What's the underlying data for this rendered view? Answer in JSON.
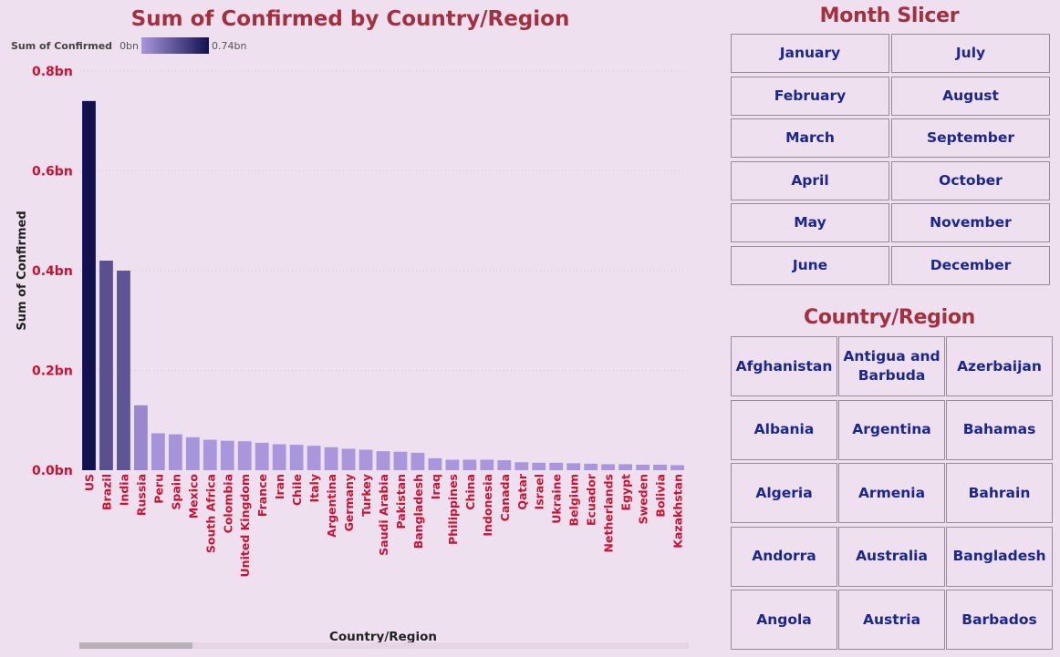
{
  "chart_data": {
    "type": "bar",
    "title": "Sum of Confirmed by Country/Region",
    "xlabel": "Country/Region",
    "ylabel": "Sum of Confirmed",
    "ylim": [
      0,
      0.8
    ],
    "yticks": [
      "0.0bn",
      "0.2bn",
      "0.4bn",
      "0.6bn",
      "0.8bn"
    ],
    "grid": true,
    "categories": [
      "US",
      "Brazil",
      "India",
      "Russia",
      "Peru",
      "Spain",
      "Mexico",
      "South Africa",
      "Colombia",
      "United Kingdom",
      "France",
      "Iran",
      "Chile",
      "Italy",
      "Argentina",
      "Germany",
      "Turkey",
      "Saudi Arabia",
      "Pakistan",
      "Bangladesh",
      "Iraq",
      "Philippines",
      "China",
      "Indonesia",
      "Canada",
      "Qatar",
      "Israel",
      "Ukraine",
      "Belgium",
      "Ecuador",
      "Netherlands",
      "Egypt",
      "Sweden",
      "Bolivia",
      "Kazakhstan"
    ],
    "values": [
      0.74,
      0.42,
      0.4,
      0.13,
      0.074,
      0.072,
      0.066,
      0.061,
      0.059,
      0.058,
      0.055,
      0.052,
      0.051,
      0.049,
      0.046,
      0.043,
      0.041,
      0.038,
      0.037,
      0.035,
      0.024,
      0.021,
      0.021,
      0.021,
      0.02,
      0.016,
      0.015,
      0.015,
      0.014,
      0.013,
      0.012,
      0.012,
      0.011,
      0.011,
      0.01
    ],
    "color_scale": {
      "title": "Sum of Confirmed",
      "min_label": "0bn",
      "max_label": "0.74bn",
      "min_color": "#a996dc",
      "max_color": "#121250"
    }
  },
  "colors": {
    "background": "#eee0ee",
    "title": "#a33040",
    "tick": "#cc1133",
    "button_text": "#1b2690",
    "button_border": "#9a8a9a"
  },
  "month_slicer": {
    "title": "Month Slicer",
    "months": [
      "January",
      "July",
      "February",
      "August",
      "March",
      "September",
      "April",
      "October",
      "May",
      "November",
      "June",
      "December"
    ]
  },
  "country_slicer": {
    "title": "Country/Region",
    "items": [
      "Afghanistan",
      "Antigua and Barbuda",
      "Azerbaijan",
      "Albania",
      "Argentina",
      "Bahamas",
      "Algeria",
      "Armenia",
      "Bahrain",
      "Andorra",
      "Australia",
      "Bangladesh",
      "Angola",
      "Austria",
      "Barbados"
    ]
  }
}
